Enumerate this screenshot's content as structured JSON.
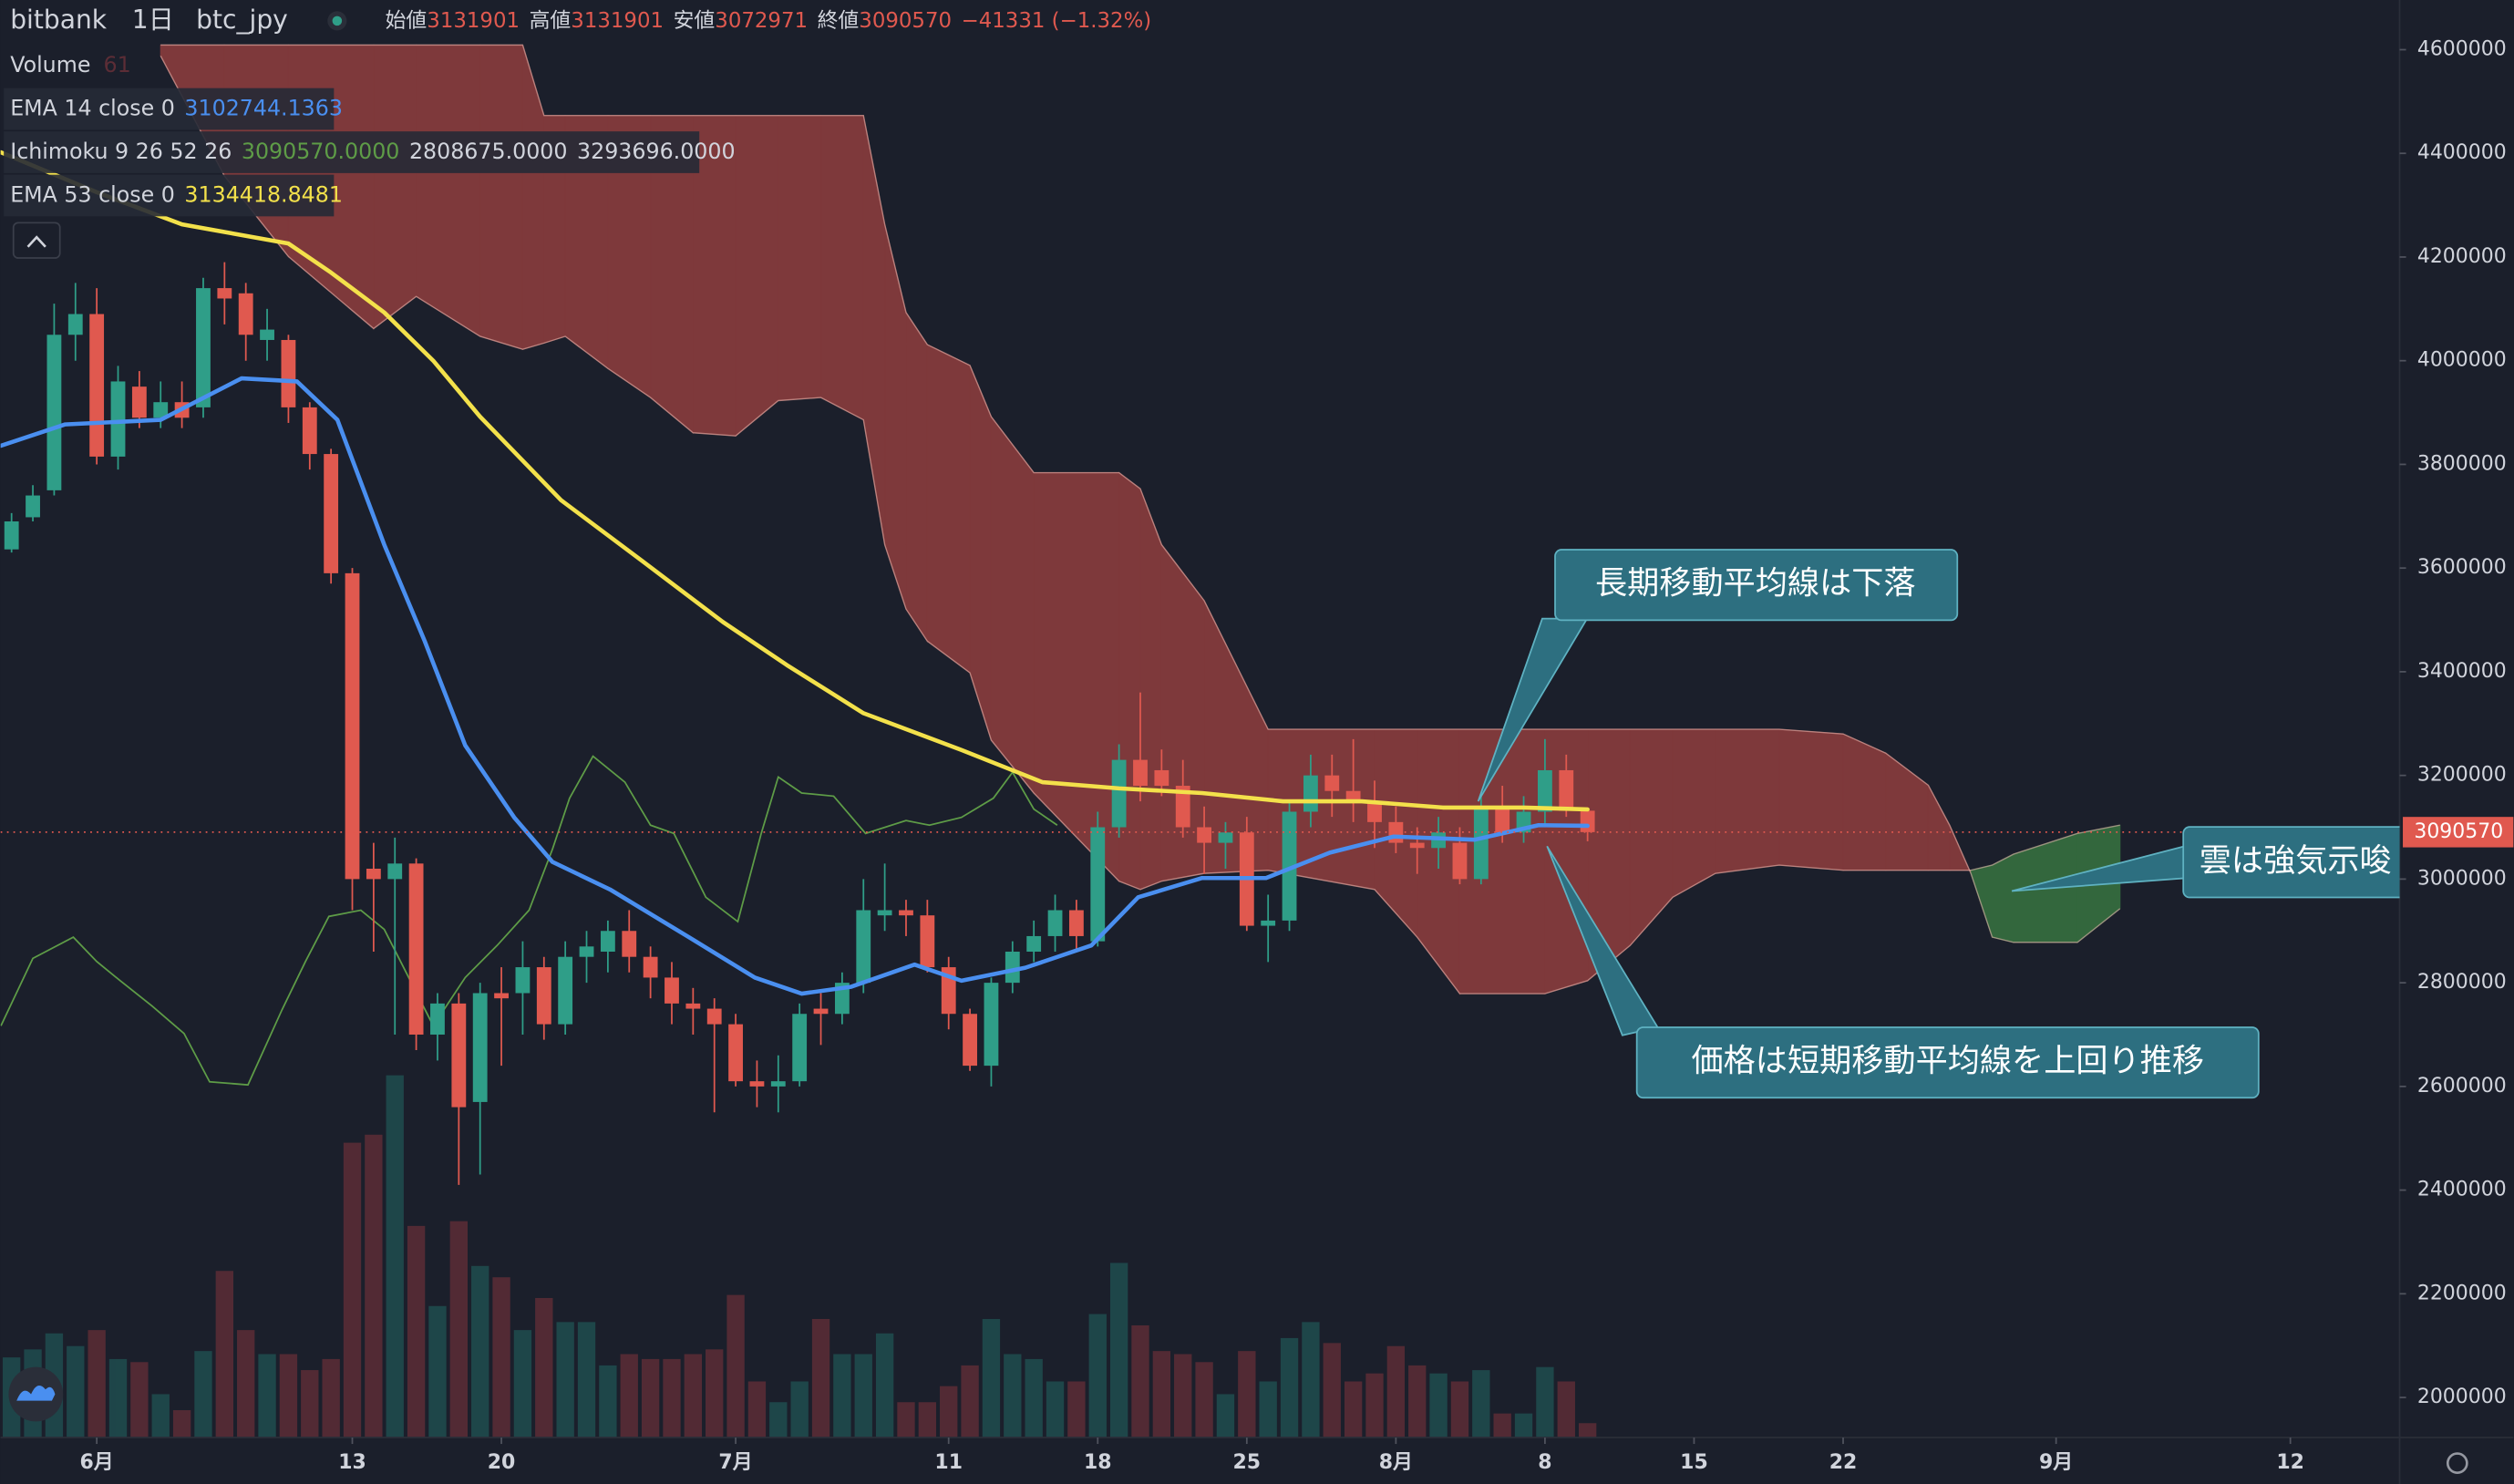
{
  "header": {
    "exchange": "bitbank",
    "interval": "1日",
    "symbol": "btc_jpy",
    "fields": [
      "始値",
      "高値",
      "安値",
      "終値"
    ],
    "change": "−41331 (−1.32%)"
  },
  "chart_data": {
    "type": "candlestick",
    "x": [
      -4,
      -3,
      -2,
      -1,
      0,
      1,
      2,
      3,
      4,
      5,
      6,
      7,
      8,
      9,
      10,
      11,
      12,
      13,
      14,
      15,
      16,
      17,
      18,
      19,
      20,
      21,
      22,
      23,
      24,
      25,
      26,
      27,
      28,
      29,
      30,
      31,
      32,
      33,
      34,
      35,
      36,
      37,
      38,
      39,
      40,
      41,
      42,
      43,
      44,
      45,
      46,
      47,
      48,
      49,
      50,
      51,
      52,
      53,
      54,
      55,
      56,
      57,
      58,
      59,
      60,
      61,
      62,
      63,
      64,
      65,
      66,
      67,
      68,
      69,
      70
    ],
    "open": [
      3636000,
      3698000,
      3750000,
      4050000,
      4090000,
      3815000,
      3950000,
      3890000,
      3920000,
      3910000,
      4140000,
      4130000,
      4040000,
      4040000,
      3910000,
      3820000,
      3590000,
      3020000,
      3000000,
      3030000,
      2700000,
      2760000,
      2570000,
      2780000,
      2780000,
      2830000,
      2720000,
      2850000,
      2860000,
      2900000,
      2850000,
      2810000,
      2760000,
      2750000,
      2720000,
      2610000,
      2600000,
      2610000,
      2750000,
      2740000,
      2800000,
      2930000,
      2940000,
      2930000,
      2830000,
      2740000,
      2640000,
      2800000,
      2860000,
      2890000,
      2940000,
      2880000,
      3100000,
      3230000,
      3210000,
      3180000,
      3100000,
      3070000,
      3090000,
      2910000,
      2920000,
      3130000,
      3200000,
      3170000,
      3150000,
      3110000,
      3070000,
      3060000,
      3070000,
      3000000,
      3140000,
      3090000,
      3130000,
      3210000,
      3131901
    ],
    "high": [
      3706000,
      3760000,
      4110000,
      4150000,
      4140000,
      3990000,
      3980000,
      3960000,
      3960000,
      4160000,
      4190000,
      4150000,
      4100000,
      4050000,
      3920000,
      3830000,
      3600000,
      3070000,
      3080000,
      3040000,
      2780000,
      2780000,
      2800000,
      2830000,
      2880000,
      2850000,
      2880000,
      2900000,
      2920000,
      2940000,
      2870000,
      2840000,
      2790000,
      2770000,
      2740000,
      2650000,
      2660000,
      2760000,
      2780000,
      2820000,
      3000000,
      3030000,
      2960000,
      2960000,
      2850000,
      2750000,
      2810000,
      2880000,
      2920000,
      2970000,
      2960000,
      3130000,
      3260000,
      3360000,
      3250000,
      3230000,
      3140000,
      3110000,
      3120000,
      2970000,
      3150000,
      3240000,
      3240000,
      3270000,
      3190000,
      3140000,
      3100000,
      3120000,
      3100000,
      3160000,
      3180000,
      3160000,
      3270000,
      3240000,
      3131901
    ],
    "low": [
      3630000,
      3690000,
      3740000,
      4000000,
      3800000,
      3790000,
      3870000,
      3870000,
      3870000,
      3890000,
      4070000,
      4000000,
      4000000,
      3880000,
      3790000,
      3570000,
      2940000,
      2860000,
      2700000,
      2670000,
      2650000,
      2410000,
      2430000,
      2640000,
      2700000,
      2690000,
      2700000,
      2800000,
      2820000,
      2820000,
      2770000,
      2720000,
      2700000,
      2550000,
      2600000,
      2560000,
      2550000,
      2600000,
      2680000,
      2720000,
      2780000,
      2900000,
      2890000,
      2820000,
      2710000,
      2630000,
      2600000,
      2780000,
      2840000,
      2860000,
      2860000,
      2870000,
      3080000,
      3150000,
      3160000,
      3080000,
      3010000,
      3020000,
      2900000,
      2840000,
      2900000,
      3100000,
      3120000,
      3110000,
      3060000,
      3050000,
      3010000,
      3020000,
      2990000,
      2990000,
      3070000,
      3070000,
      3100000,
      3120000,
      3072971
    ],
    "close": [
      3690000,
      3740000,
      4050000,
      4090000,
      3815000,
      3960000,
      3890000,
      3920000,
      3890000,
      4140000,
      4120000,
      4050000,
      4060000,
      3910000,
      3820000,
      3590000,
      3000000,
      3000000,
      3030000,
      2700000,
      2760000,
      2560000,
      2780000,
      2770000,
      2830000,
      2720000,
      2850000,
      2870000,
      2900000,
      2850000,
      2810000,
      2760000,
      2750000,
      2720000,
      2610000,
      2600000,
      2610000,
      2740000,
      2740000,
      2800000,
      2940000,
      2940000,
      2930000,
      2830000,
      2740000,
      2640000,
      2800000,
      2860000,
      2890000,
      2940000,
      2890000,
      3100000,
      3230000,
      3180000,
      3180000,
      3100000,
      3070000,
      3090000,
      2910000,
      2920000,
      3130000,
      3200000,
      3170000,
      3150000,
      3110000,
      3070000,
      3060000,
      3090000,
      3000000,
      3140000,
      3090000,
      3130000,
      3210000,
      3131900,
      3090570
    ],
    "up_color": "#2f9e88",
    "down_color": "#e0594f",
    "volume": {
      "name": "Volume",
      "ylim": [
        0,
        6100
      ],
      "up_color": "#1f4d4f",
      "down_color": "#5c2d36",
      "values": [
        340,
        374,
        442,
        388,
        456,
        333,
        320,
        184,
        116,
        367,
        707,
        456,
        354,
        354,
        286,
        333,
        1251,
        1285,
        1537,
        898,
        558,
        918,
        728,
        680,
        456,
        592,
        490,
        490,
        306,
        354,
        333,
        333,
        354,
        374,
        605,
        238,
        150,
        238,
        503,
        354,
        354,
        442,
        150,
        150,
        218,
        306,
        503,
        354,
        333,
        238,
        238,
        524,
        741,
        476,
        367,
        354,
        320,
        184,
        367,
        238,
        422,
        490,
        401,
        238,
        272,
        388,
        306,
        272,
        238,
        286,
        102,
        102,
        299,
        238,
        61
      ]
    },
    "lines": [
      {
        "name": "EMA 14 close 0",
        "color": "#4a8ff0",
        "x": [
          -4.5,
          -1.5,
          3,
          6.8,
          9.4,
          11.3,
          13.5,
          15.4,
          17.3,
          19.6,
          21.4,
          24.1,
          27.8,
          30.9,
          33.1,
          35.4,
          38.4,
          40.6,
          43.6,
          46.7,
          48.9,
          51.9,
          54.9,
          57.9,
          60.9,
          64.7,
          67.7,
          70
        ],
        "values": [
          3836000,
          3877000,
          3886000,
          3966000,
          3960000,
          3886000,
          3645000,
          3459000,
          3258000,
          3119000,
          3033000,
          2980000,
          2888000,
          2810000,
          2779000,
          2792000,
          2835000,
          2804000,
          2829000,
          2872000,
          2965000,
          3002000,
          3002000,
          3051000,
          3082000,
          3076000,
          3104000,
          3102744.1363
        ]
      },
      {
        "name": "EMA 53 close 0",
        "color": "#f3e14b",
        "x": [
          -4.5,
          0,
          4,
          9,
          11,
          13.5,
          15.8,
          18,
          21.8,
          25.6,
          29.4,
          32.4,
          36,
          40.6,
          44.4,
          48,
          51.9,
          55.7,
          59.4,
          63.2,
          67,
          70
        ],
        "values": [
          4402000,
          4325000,
          4263000,
          4226000,
          4170000,
          4093000,
          4000000,
          3892000,
          3731000,
          3614000,
          3496000,
          3413000,
          3320000,
          3249000,
          3187000,
          3175000,
          3166000,
          3150000,
          3150000,
          3138000,
          3138000,
          3134418.8481
        ]
      }
    ],
    "ichimoku": {
      "name": "Ichimoku 9 26 52 26",
      "value_labels": [
        "3090570.0000",
        "2808675.0000",
        "3293696.0000"
      ],
      "lagging": {
        "color": "#5e9c47",
        "x": [
          -4.5,
          -3,
          -1.1,
          0,
          1.1,
          2.6,
          4.1,
          5.3,
          7.1,
          8.7,
          9.8,
          10.9,
          12.4,
          13.5,
          15.8,
          17.3,
          18.8,
          20.3,
          21.4,
          22.2,
          23.3,
          24.8,
          26,
          27.1,
          28.6,
          30.1,
          31.2,
          32,
          33.1,
          34.6,
          36.1,
          38,
          39.1,
          40.6,
          42.1,
          43,
          44,
          45.1
        ],
        "values": [
          2717000,
          2847000,
          2888000,
          2841000,
          2804000,
          2755000,
          2702000,
          2609000,
          2603000,
          2748000,
          2841000,
          2928000,
          2940000,
          2903000,
          2717000,
          2810000,
          2872000,
          2940000,
          3058000,
          3156000,
          3237000,
          3187000,
          3104000,
          3088000,
          2965000,
          2918000,
          3088000,
          3197000,
          3166000,
          3160000,
          3088000,
          3113000,
          3104000,
          3119000,
          3156000,
          3206000,
          3135000,
          3104000
        ]
      },
      "cloud": {
        "up_color": "#4caf50",
        "down_color": "#e0534b",
        "x": [
          3,
          6,
          9,
          13,
          15,
          18,
          20,
          21,
          22,
          24,
          26,
          28,
          30,
          32,
          34,
          36,
          37,
          38,
          39,
          41,
          42,
          44,
          48,
          49,
          50,
          52,
          55,
          60,
          62,
          64,
          68,
          70,
          72,
          74,
          76,
          79,
          82,
          84,
          86,
          87,
          88,
          89,
          90,
          93,
          95
        ],
        "span_a": [
          4588000,
          4356000,
          4201000,
          4062000,
          4124000,
          4047000,
          4022000,
          4034000,
          4047000,
          3985000,
          3929000,
          3861000,
          3855000,
          3923000,
          3929000,
          3886000,
          3645000,
          3521000,
          3459000,
          3398000,
          3268000,
          3166000,
          2996000,
          2980000,
          2996000,
          3011000,
          3017000,
          2980000,
          2888000,
          2779000,
          2779000,
          2804000,
          2872000,
          2965000,
          3011000,
          3027000,
          3017000,
          3017000,
          3017000,
          3017000,
          3017000,
          3027000,
          3048000,
          3088000,
          3104000
        ],
        "span_b": [
          4609000,
          4609000,
          4609000,
          4609000,
          4609000,
          4609000,
          4609000,
          4473000,
          4473000,
          4473000,
          4473000,
          4473000,
          4473000,
          4473000,
          4473000,
          4473000,
          4263000,
          4093000,
          4031000,
          3991000,
          3892000,
          3784000,
          3784000,
          3753000,
          3645000,
          3537000,
          3289000,
          3289000,
          3289000,
          3289000,
          3289000,
          3289000,
          3289000,
          3289000,
          3289000,
          3289000,
          3280000,
          3243000,
          3181000,
          3104000,
          3011000,
          2888000,
          2878000,
          2878000,
          2943000
        ]
      }
    },
    "xlim": [
      -4.515,
      108.13
    ],
    "xticks": [
      {
        "value": 0,
        "label": "6月"
      },
      {
        "value": 12,
        "label": "13"
      },
      {
        "value": 19,
        "label": "20"
      },
      {
        "value": 30,
        "label": "7月"
      },
      {
        "value": 40,
        "label": "11"
      },
      {
        "value": 47,
        "label": "18"
      },
      {
        "value": 54,
        "label": "25"
      },
      {
        "value": 61,
        "label": "8月"
      },
      {
        "value": 68,
        "label": "8"
      },
      {
        "value": 75,
        "label": "15"
      },
      {
        "value": 82,
        "label": "22"
      },
      {
        "value": 92,
        "label": "9月"
      },
      {
        "value": 103,
        "label": "12"
      }
    ],
    "ylim": [
      1922720,
      4695830
    ],
    "yticks": [
      2000000,
      2200000,
      2400000,
      2600000,
      2800000,
      3000000,
      3200000,
      3400000,
      3600000,
      3800000,
      4000000,
      4200000,
      4400000,
      4600000
    ]
  },
  "annotations": [
    "長期移動平均線は下落",
    "価格は短期移動平均線を上回り推移",
    "雲は強気示唆"
  ]
}
